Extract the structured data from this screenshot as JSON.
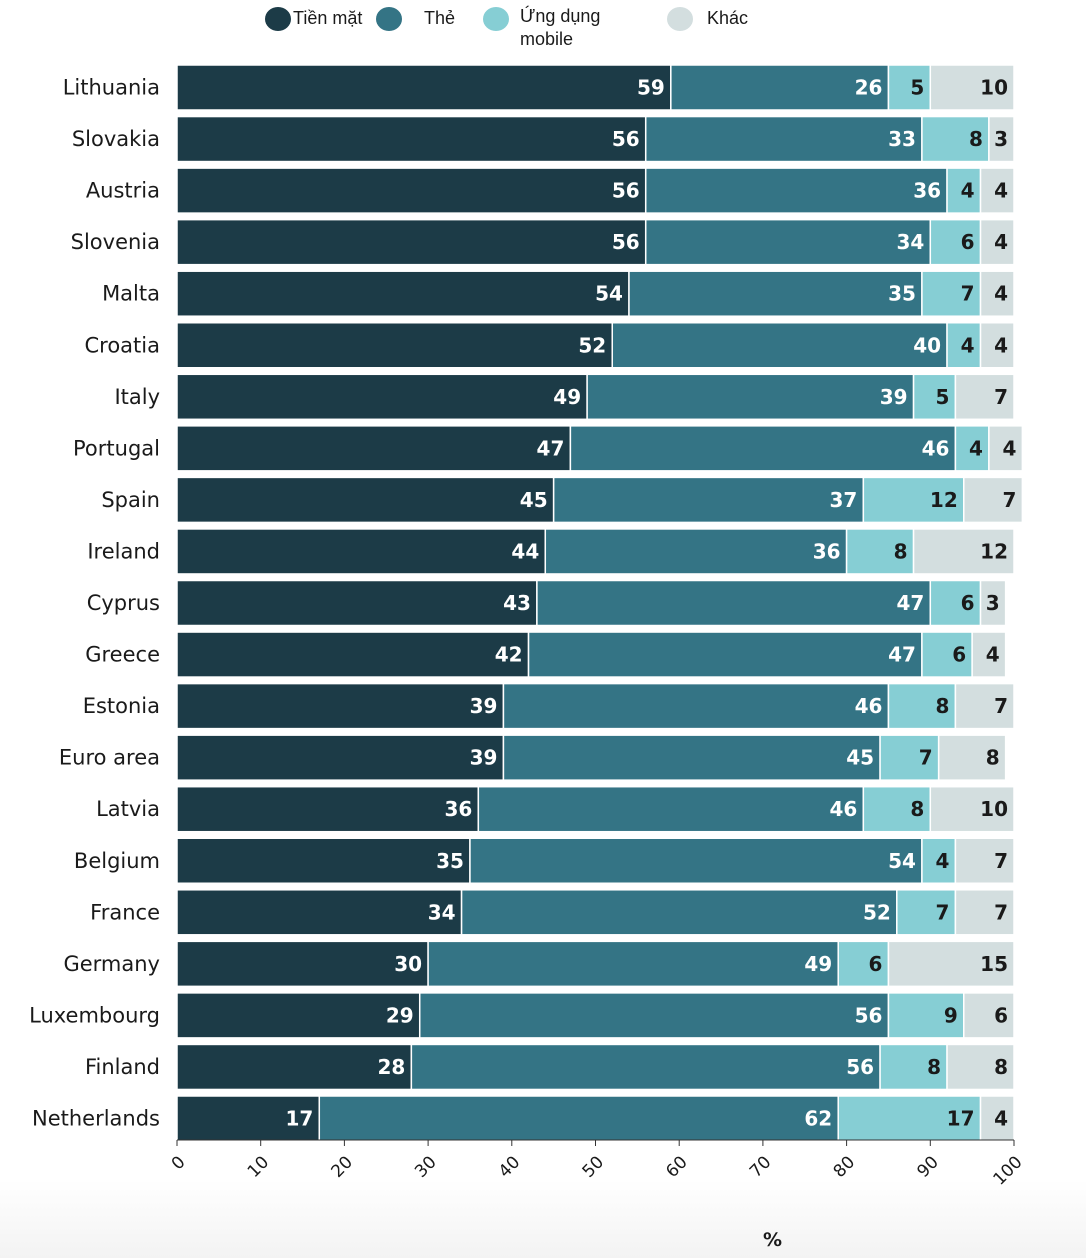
{
  "chart_data": {
    "type": "bar",
    "orientation": "horizontal",
    "stacked": true,
    "title": "",
    "xlabel": "%",
    "ylabel": "",
    "xlim": [
      0,
      100
    ],
    "xticks": [
      0,
      10,
      20,
      30,
      40,
      50,
      60,
      70,
      80,
      90,
      100
    ],
    "grid": false,
    "legend_position": "top",
    "categories": [
      "Lithuania",
      "Slovakia",
      "Austria",
      "Slovenia",
      "Malta",
      "Croatia",
      "Italy",
      "Portugal",
      "Spain",
      "Ireland",
      "Cyprus",
      "Greece",
      "Estonia",
      "Euro area",
      "Latvia",
      "Belgium",
      "France",
      "Germany",
      "Luxembourg",
      "Finland",
      "Netherlands"
    ],
    "series": [
      {
        "name": "Tiền mặt",
        "color": "#1c3b47",
        "label_color": "#ffffff",
        "values": [
          59,
          56,
          56,
          56,
          54,
          52,
          49,
          47,
          45,
          44,
          43,
          42,
          39,
          39,
          36,
          35,
          34,
          30,
          29,
          28,
          17
        ]
      },
      {
        "name": "Thẻ",
        "color": "#347485",
        "label_color": "#ffffff",
        "values": [
          26,
          33,
          36,
          34,
          35,
          40,
          39,
          46,
          37,
          36,
          47,
          47,
          46,
          45,
          46,
          54,
          52,
          49,
          56,
          56,
          62
        ]
      },
      {
        "name": "Ứng dụng mobile",
        "legend_lines": [
          "Ứng dụng",
          "mobile"
        ],
        "color": "#86ced4",
        "label_color": "#1a1a1a",
        "values": [
          5,
          8,
          4,
          6,
          7,
          4,
          5,
          4,
          12,
          8,
          6,
          6,
          8,
          7,
          8,
          4,
          7,
          6,
          9,
          8,
          17
        ]
      },
      {
        "name": "Khác",
        "color": "#d3dedf",
        "label_color": "#1a1a1a",
        "values": [
          10,
          3,
          4,
          4,
          4,
          4,
          7,
          4,
          7,
          12,
          3,
          4,
          7,
          8,
          10,
          7,
          7,
          15,
          6,
          8,
          4
        ]
      }
    ]
  }
}
